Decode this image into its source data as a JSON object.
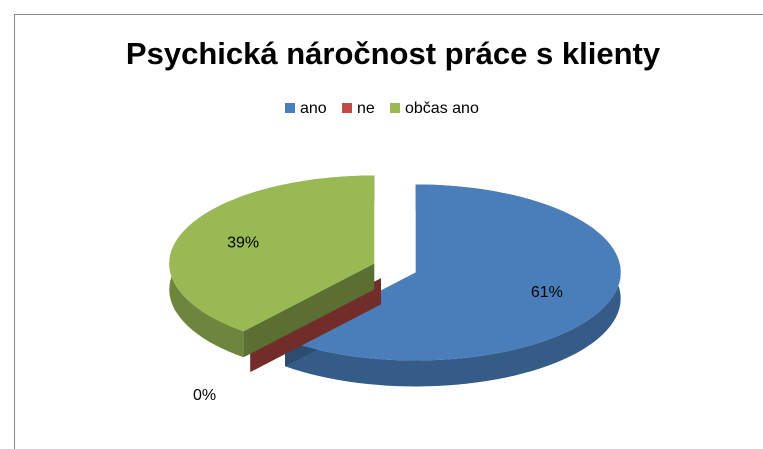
{
  "chart_data": {
    "type": "pie3d",
    "title": "Psychická náročnost práce s klienty",
    "categories": [
      "ano",
      "ne",
      "občas ano"
    ],
    "values": [
      61,
      0,
      39
    ],
    "value_labels": [
      "61%",
      "0%",
      "39%"
    ],
    "colors": [
      "#4a7ebb",
      "#be4b48",
      "#98b954"
    ],
    "legend": "top"
  }
}
